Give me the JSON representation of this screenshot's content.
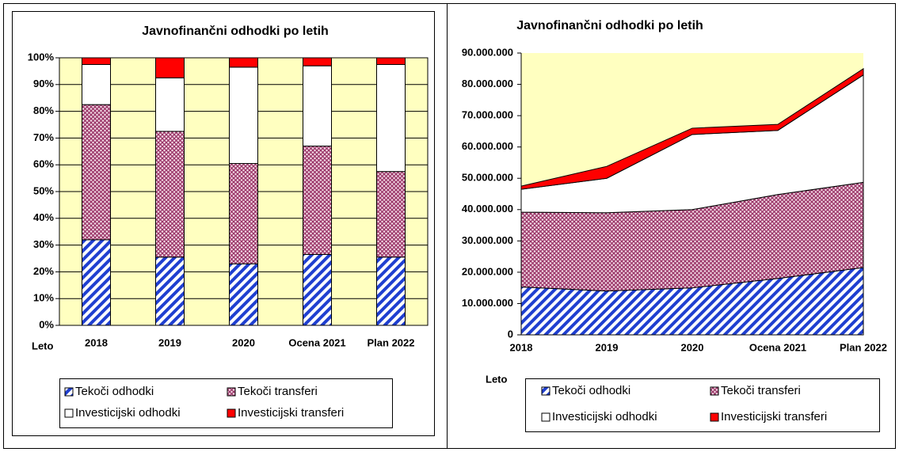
{
  "chart_data": [
    {
      "type": "bar",
      "title": "Javnofinančni odhodki po letih",
      "xlabel": "Leto",
      "categories": [
        "2018",
        "2019",
        "2020",
        "Ocena 2021",
        "Plan 2022"
      ],
      "series": [
        {
          "name": "Tekoči odhodki",
          "color": "#1f3fd0",
          "values": [
            32,
            25.5,
            23,
            26.5,
            25.5
          ]
        },
        {
          "name": "Tekoči transferi",
          "color": "#993366",
          "values": [
            50.5,
            47,
            37.5,
            40.5,
            32
          ]
        },
        {
          "name": "Investicijski odhodki",
          "color": "#ffffff",
          "values": [
            15,
            20,
            36,
            30,
            40
          ]
        },
        {
          "name": "Investicijski transferi",
          "color": "#ff0000",
          "values": [
            2.5,
            7.5,
            3.5,
            3,
            2.5
          ]
        }
      ],
      "ylim": [
        0,
        100
      ],
      "yticks": [
        {
          "value": 0,
          "label": "0%"
        },
        {
          "value": 10,
          "label": "10%"
        },
        {
          "value": 20,
          "label": "20%"
        },
        {
          "value": 30,
          "label": "30%"
        },
        {
          "value": 40,
          "label": "40%"
        },
        {
          "value": 50,
          "label": "50%"
        },
        {
          "value": 60,
          "label": "60%"
        },
        {
          "value": 70,
          "label": "70%"
        },
        {
          "value": 80,
          "label": "80%"
        },
        {
          "value": 90,
          "label": "90%"
        },
        {
          "value": 100,
          "label": "100%"
        }
      ],
      "grid": true
    },
    {
      "type": "area",
      "title": "Javnofinančni odhodki po letih",
      "xlabel": "Leto",
      "categories": [
        "2018",
        "2019",
        "2020",
        "Ocena 2021",
        "Plan 2022"
      ],
      "series": [
        {
          "name": "Tekoči odhodki",
          "color": "#1f3fd0",
          "values": [
            15300000,
            14000000,
            15000000,
            18000000,
            21500000
          ]
        },
        {
          "name": "Tekoči transferi",
          "color": "#993366",
          "values": [
            23900000,
            25000000,
            25000000,
            26800000,
            27200000
          ]
        },
        {
          "name": "Investicijski odhodki",
          "color": "#ffffff",
          "values": [
            7300000,
            11000000,
            24000000,
            20500000,
            34300000
          ]
        },
        {
          "name": "Investicijski transferi",
          "color": "#ff0000",
          "values": [
            1000000,
            3800000,
            2000000,
            1900000,
            2000000
          ]
        }
      ],
      "ylim": [
        0,
        90000000
      ],
      "yticks": [
        0,
        {
          "value": 10000000,
          "label": "10.000.000"
        },
        {
          "value": 20000000,
          "label": "20.000.000"
        },
        {
          "value": 30000000,
          "label": "30.000.000"
        },
        {
          "value": 40000000,
          "label": "40.000.000"
        },
        {
          "value": 50000000,
          "label": "50.000.000"
        },
        {
          "value": 60000000,
          "label": "60.000.000"
        },
        {
          "value": 70000000,
          "label": "70.000.000"
        },
        {
          "value": 80000000,
          "label": "80.000.000"
        },
        {
          "value": 90000000,
          "label": "90.000.000"
        }
      ],
      "grid": false
    }
  ]
}
